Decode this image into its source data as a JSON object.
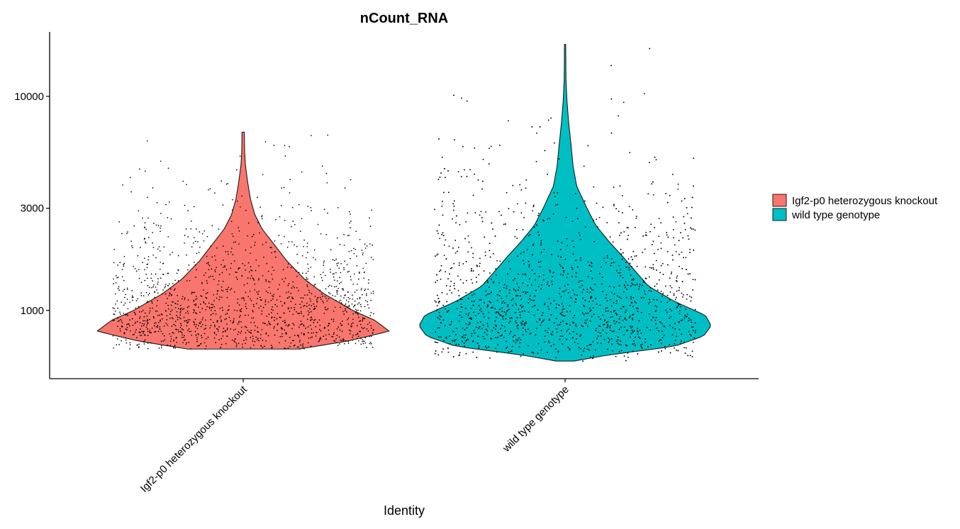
{
  "chart_data": {
    "type": "violin",
    "title": "nCount_RNA",
    "xlabel": "Identity",
    "ylabel": "",
    "y_scale": "log10",
    "ylim": [
      480,
      20000
    ],
    "y_ticks": [
      1000,
      3000,
      10000
    ],
    "y_tick_labels": [
      "1000",
      "3000",
      "10000"
    ],
    "categories": [
      "Igf2-p0 heterozygous knockout",
      "wild type genotype"
    ],
    "legend": {
      "position": "right",
      "entries": [
        "Igf2-p0 heterozygous knockout",
        "wild type genotype"
      ]
    },
    "series": [
      {
        "name": "Igf2-p0 heterozygous knockout",
        "color": "#F8766D",
        "min": 660,
        "max": 6800,
        "points_approx": 1500,
        "density": [
          [
            660,
            0.38
          ],
          [
            720,
            0.72
          ],
          [
            800,
            1.0
          ],
          [
            900,
            0.9
          ],
          [
            1000,
            0.75
          ],
          [
            1200,
            0.55
          ],
          [
            1400,
            0.42
          ],
          [
            1700,
            0.3
          ],
          [
            2000,
            0.22
          ],
          [
            2400,
            0.13
          ],
          [
            2800,
            0.08
          ],
          [
            3300,
            0.05
          ],
          [
            4000,
            0.03
          ],
          [
            4800,
            0.015
          ],
          [
            5500,
            0.01
          ],
          [
            6800,
            0.008
          ]
        ]
      },
      {
        "name": "wild type genotype",
        "color": "#00BFC4",
        "min": 580,
        "max": 17500,
        "points_approx": 3000,
        "density": [
          [
            580,
            0.06
          ],
          [
            620,
            0.3
          ],
          [
            680,
            0.75
          ],
          [
            760,
            0.95
          ],
          [
            850,
            1.0
          ],
          [
            950,
            0.96
          ],
          [
            1100,
            0.75
          ],
          [
            1300,
            0.57
          ],
          [
            1500,
            0.49
          ],
          [
            1800,
            0.39
          ],
          [
            2100,
            0.3
          ],
          [
            2500,
            0.21
          ],
          [
            3000,
            0.15
          ],
          [
            3800,
            0.08
          ],
          [
            4700,
            0.055
          ],
          [
            6000,
            0.04
          ],
          [
            7500,
            0.025
          ],
          [
            9500,
            0.013
          ],
          [
            12000,
            0.006
          ],
          [
            17500,
            0.004
          ]
        ]
      }
    ]
  }
}
